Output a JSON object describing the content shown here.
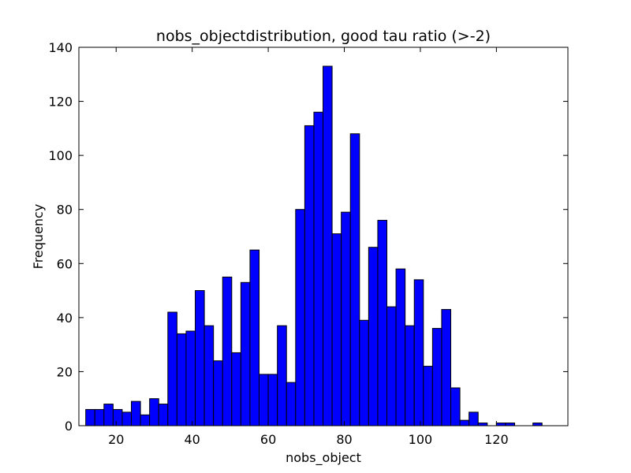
{
  "chart_data": {
    "type": "bar",
    "title": "nobs_objectdistribution, good tau ratio (>-2)",
    "xlabel": "nobs_object",
    "ylabel": "Frequency",
    "xlim": [
      10.2,
      138.8
    ],
    "ylim": [
      0,
      140
    ],
    "xticks": [
      20,
      40,
      60,
      80,
      100,
      120
    ],
    "yticks": [
      0,
      20,
      40,
      60,
      80,
      100,
      120,
      140
    ],
    "bin_start": 12,
    "bin_width": 2.4,
    "values": [
      6,
      6,
      8,
      6,
      5,
      9,
      4,
      10,
      8,
      42,
      34,
      35,
      50,
      37,
      24,
      55,
      27,
      53,
      65,
      19,
      19,
      37,
      16,
      80,
      111,
      116,
      133,
      71,
      79,
      108,
      39,
      66,
      76,
      44,
      58,
      37,
      54,
      22,
      36,
      43,
      14,
      2,
      5,
      1,
      0,
      1,
      1,
      0,
      0,
      1
    ],
    "bar_color": "#0000ff",
    "edge_color": "#000000",
    "grid": false,
    "legend": "none"
  }
}
